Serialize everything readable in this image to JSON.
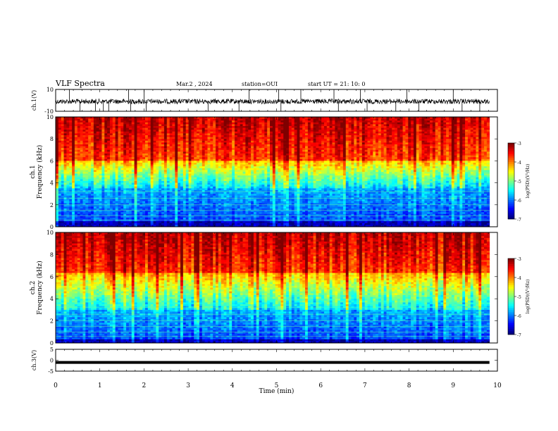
{
  "header": {
    "title": "VLF Spectra",
    "date": "Mar.2  , 2024",
    "station": "station=OUI",
    "start_time": "start  UT =   21: 10: 0"
  },
  "chart_data": [
    {
      "type": "line",
      "name": "ch1-waveform",
      "ylabel": "ch.1(V)",
      "ylim": [
        -10,
        10
      ],
      "yticks": [
        "10",
        "-10"
      ],
      "x_range": [
        0,
        10
      ],
      "data_end_min": 9.82,
      "baseline": -1,
      "spikes_min": [
        0.31,
        0.55,
        0.9,
        1.08,
        1.2,
        1.65,
        1.7,
        2.0,
        2.05,
        3.45,
        4.15,
        4.38,
        5.05,
        5.1,
        5.55,
        6.3,
        6.4,
        6.9,
        7.05,
        7.7,
        7.95,
        8.22,
        9.0,
        9.2,
        9.6
      ]
    },
    {
      "type": "heatmap",
      "name": "ch1-spectrogram",
      "ylabel": "ch.1\nFrequency  (kHz)",
      "ylim": [
        0,
        10
      ],
      "yticks": [
        "0",
        "2",
        "4",
        "6",
        "8",
        "10"
      ],
      "x_range": [
        0,
        10
      ],
      "data_end_min": 9.82,
      "colorbar": {
        "label": "log(PSD)(V²/Hz)",
        "range": [
          -7,
          -3
        ],
        "ticks": [
          "-3",
          "-4",
          "-5",
          "-6",
          "-7"
        ]
      },
      "profile": {
        "floor_khz": 0.5,
        "low_band_khz": [
          0.5,
          3.5
        ],
        "mid_band_khz": [
          3.5,
          6.0
        ],
        "high_band_khz": [
          6.0,
          10
        ]
      }
    },
    {
      "type": "heatmap",
      "name": "ch2-spectrogram",
      "ylabel": "ch.2\nFrequency  (kHz)",
      "ylim": [
        0,
        10
      ],
      "yticks": [
        "0",
        "2",
        "4",
        "6",
        "8",
        "10"
      ],
      "x_range": [
        0,
        10
      ],
      "data_end_min": 9.82,
      "colorbar": {
        "label": "log(PSD)(V²/Hz)",
        "range": [
          -7,
          -3
        ],
        "ticks": [
          "-3",
          "-4",
          "-5",
          "-6",
          "-7"
        ]
      },
      "profile": {
        "floor_khz": 0.4,
        "low_band_khz": [
          0.4,
          3.0
        ],
        "mid_band_khz": [
          3.0,
          6.3
        ],
        "high_band_khz": [
          6.3,
          10
        ]
      }
    },
    {
      "type": "line",
      "name": "ch3-waveform",
      "ylabel": "ch.3(V)",
      "ylim": [
        -5,
        5
      ],
      "yticks": [
        "5",
        "0",
        "-5"
      ],
      "x_range": [
        0,
        10
      ],
      "data_end_min": 9.82,
      "baseline": -1
    }
  ],
  "xaxis": {
    "label": "Time  (min)",
    "ticks": [
      "0",
      "1",
      "2",
      "3",
      "4",
      "5",
      "6",
      "7",
      "8",
      "9",
      "10"
    ]
  },
  "colors": {
    "jet": [
      "#00007f",
      "#0000ff",
      "#007fff",
      "#00ffff",
      "#7fff7f",
      "#ffff00",
      "#ff7f00",
      "#ff0000",
      "#7f0000"
    ]
  }
}
